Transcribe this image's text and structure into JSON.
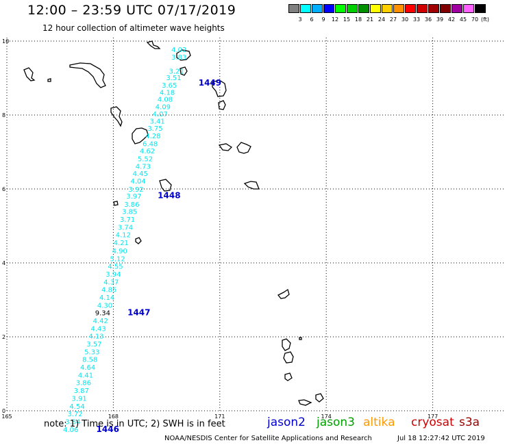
{
  "header": {
    "title": "12:00 – 23:59 UTC 07/17/2019",
    "subtitle": "12 hour collection of altimeter wave heights"
  },
  "colorbar": {
    "unit": "(ft)",
    "bins": [
      {
        "label": "",
        "color": "#808080"
      },
      {
        "label": "3",
        "color": "#00ffff"
      },
      {
        "label": "6",
        "color": "#00b0ff"
      },
      {
        "label": "9",
        "color": "#0000ff"
      },
      {
        "label": "12",
        "color": "#00ff00"
      },
      {
        "label": "15",
        "color": "#00d000"
      },
      {
        "label": "18",
        "color": "#009000"
      },
      {
        "label": "21",
        "color": "#ffff00"
      },
      {
        "label": "24",
        "color": "#ffd000"
      },
      {
        "label": "27",
        "color": "#ff9000"
      },
      {
        "label": "30",
        "color": "#ff0000"
      },
      {
        "label": "33",
        "color": "#d00000"
      },
      {
        "label": "36",
        "color": "#a00000"
      },
      {
        "label": "39",
        "color": "#800000"
      },
      {
        "label": "42",
        "color": "#a000a0"
      },
      {
        "label": "45",
        "color": "#ff60ff"
      },
      {
        "label": "70",
        "color": "#000000"
      }
    ]
  },
  "map": {
    "lon_ticks": [
      "165",
      "168",
      "171",
      "174",
      "177"
    ],
    "lat_ticks": [
      "0",
      "2",
      "4",
      "6",
      "8",
      "10"
    ],
    "colors": {
      "track": "#00e5ee",
      "time_label": "#0000cc",
      "highlight": "#000000",
      "grid": "#000000"
    },
    "observations": [
      {
        "lon": 169.85,
        "lat": 9.7,
        "swh": "4.02"
      },
      {
        "lon": 169.85,
        "lat": 9.5,
        "swh": "3.83"
      },
      {
        "lon": 169.78,
        "lat": 9.12,
        "swh": "3.21"
      },
      {
        "lon": 169.7,
        "lat": 8.94,
        "swh": "3.51"
      },
      {
        "lon": 169.58,
        "lat": 8.74,
        "swh": "3.65"
      },
      {
        "lon": 169.52,
        "lat": 8.55,
        "swh": "4.18"
      },
      {
        "lon": 169.46,
        "lat": 8.36,
        "swh": "4.08"
      },
      {
        "lon": 169.4,
        "lat": 8.16,
        "swh": "4.09"
      },
      {
        "lon": 169.32,
        "lat": 7.96,
        "swh": "4.07"
      },
      {
        "lon": 169.24,
        "lat": 7.77,
        "swh": "3.41"
      },
      {
        "lon": 169.18,
        "lat": 7.57,
        "swh": "3.75"
      },
      {
        "lon": 169.12,
        "lat": 7.37,
        "swh": "4.28"
      },
      {
        "lon": 169.04,
        "lat": 7.16,
        "swh": "6.48"
      },
      {
        "lon": 168.96,
        "lat": 6.96,
        "swh": "4.62"
      },
      {
        "lon": 168.9,
        "lat": 6.75,
        "swh": "5.52"
      },
      {
        "lon": 168.84,
        "lat": 6.55,
        "swh": "4.73"
      },
      {
        "lon": 168.76,
        "lat": 6.35,
        "swh": "4.45"
      },
      {
        "lon": 168.7,
        "lat": 6.15,
        "swh": "4.04"
      },
      {
        "lon": 168.64,
        "lat": 5.93,
        "swh": "3.92"
      },
      {
        "lon": 168.58,
        "lat": 5.74,
        "swh": "3.97"
      },
      {
        "lon": 168.52,
        "lat": 5.52,
        "swh": "3.86"
      },
      {
        "lon": 168.46,
        "lat": 5.32,
        "swh": "3.85"
      },
      {
        "lon": 168.4,
        "lat": 5.11,
        "swh": "3.71"
      },
      {
        "lon": 168.34,
        "lat": 4.9,
        "swh": "3.74"
      },
      {
        "lon": 168.28,
        "lat": 4.69,
        "swh": "4.12"
      },
      {
        "lon": 168.22,
        "lat": 4.48,
        "swh": "4.21"
      },
      {
        "lon": 168.18,
        "lat": 4.26,
        "swh": "4.90"
      },
      {
        "lon": 168.12,
        "lat": 4.05,
        "swh": "5.12"
      },
      {
        "lon": 168.06,
        "lat": 3.84,
        "swh": "4.55"
      },
      {
        "lon": 168.0,
        "lat": 3.63,
        "swh": "3.94"
      },
      {
        "lon": 167.94,
        "lat": 3.42,
        "swh": "4.37"
      },
      {
        "lon": 167.88,
        "lat": 3.21,
        "swh": "4.85"
      },
      {
        "lon": 167.82,
        "lat": 3.0,
        "swh": "4.14"
      },
      {
        "lon": 167.76,
        "lat": 2.79,
        "swh": "4.30"
      },
      {
        "lon": 167.7,
        "lat": 2.58,
        "swh": "9.34",
        "highlight": true
      },
      {
        "lon": 167.64,
        "lat": 2.37,
        "swh": "4.42"
      },
      {
        "lon": 167.58,
        "lat": 2.16,
        "swh": "4.43"
      },
      {
        "lon": 167.52,
        "lat": 1.95,
        "swh": "4.13"
      },
      {
        "lon": 167.46,
        "lat": 1.74,
        "swh": "3.57"
      },
      {
        "lon": 167.4,
        "lat": 1.53,
        "swh": "5.33"
      },
      {
        "lon": 167.34,
        "lat": 1.32,
        "swh": "8.58"
      },
      {
        "lon": 167.28,
        "lat": 1.11,
        "swh": "4.64"
      },
      {
        "lon": 167.22,
        "lat": 0.9,
        "swh": "4.41"
      },
      {
        "lon": 167.16,
        "lat": 0.69,
        "swh": "3.86"
      },
      {
        "lon": 167.1,
        "lat": 0.48,
        "swh": "3.87"
      },
      {
        "lon": 167.04,
        "lat": 0.27,
        "swh": "3.91"
      },
      {
        "lon": 166.98,
        "lat": 0.06,
        "swh": "4.54"
      },
      {
        "lon": 166.92,
        "lat": -0.15,
        "swh": "3.72"
      },
      {
        "lon": 166.86,
        "lat": -0.36,
        "swh": "3.84"
      },
      {
        "lon": 166.8,
        "lat": -0.57,
        "swh": "4.06"
      }
    ],
    "time_labels": [
      {
        "text": "1449",
        "lon": 170.4,
        "lat": 8.8
      },
      {
        "text": "1448",
        "lon": 169.25,
        "lat": 5.75
      },
      {
        "text": "1447",
        "lon": 168.4,
        "lat": 2.58
      },
      {
        "text": "1446",
        "lon": 167.52,
        "lat": -0.57
      }
    ]
  },
  "footer": {
    "note": "note:  1) Time is in UTC;  2) SWH is in feet",
    "legend": [
      {
        "name": "jason2",
        "color": "#0000cc"
      },
      {
        "name": "jason3",
        "color": "#00a000"
      },
      {
        "name": "altika",
        "color": "#ff9900"
      },
      {
        "name": "cryosat",
        "color": "#cc0000"
      },
      {
        "name": "s3a",
        "color": "#990000"
      }
    ],
    "credit": "NOAA/NESDIS Center for Satellite Applications and Research",
    "timestamp": "Jul 18 12:27:42 UTC 2019"
  }
}
